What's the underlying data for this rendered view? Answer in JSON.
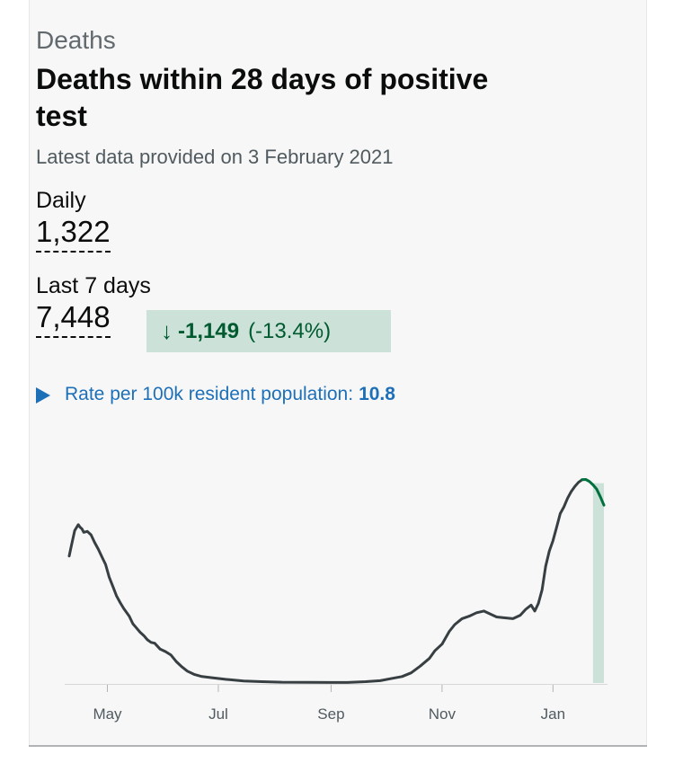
{
  "card": {
    "category": "Deaths",
    "title": "Deaths within 28 days of positive test",
    "updated": "Latest data provided on 3 February 2021",
    "daily": {
      "label": "Daily",
      "value": "1,322"
    },
    "last7": {
      "label": "Last 7 days",
      "value": "7,448"
    },
    "change": {
      "arrow": "↓",
      "absolute": "-1,149",
      "percent": "(-13.4%)"
    },
    "rate": {
      "label": "Rate per 100k resident population:",
      "value": "10.8"
    }
  },
  "colors": {
    "line": "#383f43",
    "highlight_line": "#00703c",
    "highlight_fill": "#cce2d8",
    "link": "#1d70b8"
  },
  "chart_data": {
    "type": "line",
    "title": "",
    "xlabel": "",
    "ylabel": "",
    "grid": false,
    "x_tick_labels": [
      "May",
      "Jul",
      "Sep",
      "Nov",
      "Jan"
    ],
    "x_tick_dates": [
      "2020-05-01",
      "2020-07-01",
      "2020-09-01",
      "2020-11-01",
      "2021-01-01"
    ],
    "x_range": [
      "2020-04-10",
      "2021-01-29"
    ],
    "y_range": [
      0,
      1300
    ],
    "series": [
      {
        "name": "",
        "points": [
          [
            "2020-04-10",
            750
          ],
          [
            "2020-04-11",
            800
          ],
          [
            "2020-04-13",
            900
          ],
          [
            "2020-04-15",
            935
          ],
          [
            "2020-04-16",
            920
          ],
          [
            "2020-04-17",
            910
          ],
          [
            "2020-04-18",
            890
          ],
          [
            "2020-04-20",
            895
          ],
          [
            "2020-04-22",
            875
          ],
          [
            "2020-04-24",
            830
          ],
          [
            "2020-04-26",
            790
          ],
          [
            "2020-04-28",
            745
          ],
          [
            "2020-04-30",
            700
          ],
          [
            "2020-05-02",
            625
          ],
          [
            "2020-05-04",
            570
          ],
          [
            "2020-05-06",
            515
          ],
          [
            "2020-05-08",
            475
          ],
          [
            "2020-05-10",
            440
          ],
          [
            "2020-05-13",
            395
          ],
          [
            "2020-05-15",
            350
          ],
          [
            "2020-05-17",
            325
          ],
          [
            "2020-05-19",
            300
          ],
          [
            "2020-05-21",
            280
          ],
          [
            "2020-05-23",
            255
          ],
          [
            "2020-05-25",
            240
          ],
          [
            "2020-05-27",
            235
          ],
          [
            "2020-05-30",
            200
          ],
          [
            "2020-06-02",
            185
          ],
          [
            "2020-06-05",
            165
          ],
          [
            "2020-06-08",
            125
          ],
          [
            "2020-06-11",
            95
          ],
          [
            "2020-06-14",
            70
          ],
          [
            "2020-06-18",
            50
          ],
          [
            "2020-06-22",
            38
          ],
          [
            "2020-06-28",
            30
          ],
          [
            "2020-07-05",
            22
          ],
          [
            "2020-07-15",
            12
          ],
          [
            "2020-07-25",
            8
          ],
          [
            "2020-08-05",
            5
          ],
          [
            "2020-08-20",
            4
          ],
          [
            "2020-09-01",
            3
          ],
          [
            "2020-09-10",
            3
          ],
          [
            "2020-09-20",
            8
          ],
          [
            "2020-09-28",
            14
          ],
          [
            "2020-10-05",
            28
          ],
          [
            "2020-10-10",
            38
          ],
          [
            "2020-10-15",
            60
          ],
          [
            "2020-10-20",
            100
          ],
          [
            "2020-10-25",
            145
          ],
          [
            "2020-10-28",
            190
          ],
          [
            "2020-11-01",
            230
          ],
          [
            "2020-11-05",
            305
          ],
          [
            "2020-11-08",
            345
          ],
          [
            "2020-11-12",
            380
          ],
          [
            "2020-11-16",
            395
          ],
          [
            "2020-11-20",
            415
          ],
          [
            "2020-11-24",
            425
          ],
          [
            "2020-11-27",
            410
          ],
          [
            "2020-12-01",
            390
          ],
          [
            "2020-12-05",
            385
          ],
          [
            "2020-12-10",
            380
          ],
          [
            "2020-12-14",
            400
          ],
          [
            "2020-12-17",
            435
          ],
          [
            "2020-12-20",
            460
          ],
          [
            "2020-12-22",
            425
          ],
          [
            "2020-12-24",
            470
          ],
          [
            "2020-12-26",
            550
          ],
          [
            "2020-12-28",
            690
          ],
          [
            "2020-12-30",
            780
          ],
          [
            "2021-01-01",
            840
          ],
          [
            "2021-01-03",
            920
          ],
          [
            "2021-01-05",
            1000
          ],
          [
            "2021-01-07",
            1040
          ],
          [
            "2021-01-09",
            1090
          ],
          [
            "2021-01-11",
            1130
          ],
          [
            "2021-01-13",
            1160
          ],
          [
            "2021-01-15",
            1185
          ],
          [
            "2021-01-17",
            1200
          ]
        ]
      },
      {
        "name": "",
        "points": [
          [
            "2021-01-17",
            1200
          ],
          [
            "2021-01-19",
            1202
          ],
          [
            "2021-01-21",
            1190
          ],
          [
            "2021-01-23",
            1170
          ],
          [
            "2021-01-25",
            1145
          ],
          [
            "2021-01-27",
            1100
          ],
          [
            "2021-01-29",
            1050
          ]
        ]
      }
    ],
    "highlight_range": [
      "2021-01-23",
      "2021-01-29"
    ]
  }
}
